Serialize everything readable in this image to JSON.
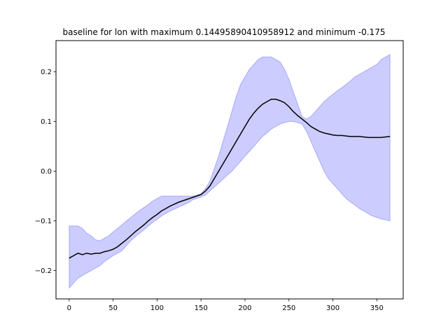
{
  "chart_data": {
    "type": "line",
    "title": "baseline for lon with maximum 0.14495890410958912 and minimum -0.175",
    "xlabel": "",
    "ylabel": "",
    "xlim": [
      -15,
      380
    ],
    "ylim": [
      -0.257,
      0.263
    ],
    "x_ticks": [
      0,
      50,
      100,
      150,
      200,
      250,
      300,
      350
    ],
    "x_tick_labels": [
      "0",
      "50",
      "100",
      "150",
      "200",
      "250",
      "300",
      "350"
    ],
    "y_ticks": [
      -0.2,
      -0.1,
      0.0,
      0.1,
      0.2
    ],
    "y_tick_labels": [
      "−0.2",
      "−0.1",
      "0.0",
      "0.1",
      "0.2"
    ],
    "grid": false,
    "legend": "none",
    "colors": {
      "line": "#000000",
      "band_fill": "#0000ff",
      "band_edge": "#0000ff"
    },
    "series": [
      {
        "x": [
          0,
          5,
          10,
          15,
          20,
          25,
          30,
          35,
          40,
          45,
          50,
          55,
          60,
          65,
          70,
          75,
          80,
          85,
          90,
          95,
          100,
          105,
          110,
          115,
          120,
          125,
          130,
          135,
          140,
          145,
          150,
          155,
          160,
          165,
          170,
          175,
          180,
          185,
          190,
          195,
          200,
          205,
          210,
          215,
          220,
          225,
          230,
          235,
          240,
          245,
          250,
          255,
          260,
          265,
          270,
          275,
          280,
          285,
          290,
          295,
          300,
          305,
          310,
          315,
          320,
          325,
          330,
          335,
          340,
          345,
          350,
          355,
          360,
          365
        ],
        "values": [
          -0.175,
          -0.17,
          -0.165,
          -0.168,
          -0.165,
          -0.167,
          -0.165,
          -0.165,
          -0.162,
          -0.16,
          -0.157,
          -0.152,
          -0.145,
          -0.138,
          -0.13,
          -0.122,
          -0.115,
          -0.108,
          -0.1,
          -0.093,
          -0.087,
          -0.08,
          -0.075,
          -0.07,
          -0.066,
          -0.062,
          -0.059,
          -0.056,
          -0.053,
          -0.05,
          -0.047,
          -0.04,
          -0.03,
          -0.015,
          0.0,
          0.015,
          0.03,
          0.045,
          0.06,
          0.075,
          0.09,
          0.105,
          0.117,
          0.127,
          0.135,
          0.14,
          0.145,
          0.145,
          0.142,
          0.138,
          0.13,
          0.12,
          0.112,
          0.105,
          0.098,
          0.09,
          0.085,
          0.08,
          0.077,
          0.075,
          0.073,
          0.072,
          0.072,
          0.071,
          0.07,
          0.07,
          0.07,
          0.069,
          0.068,
          0.068,
          0.068,
          0.068,
          0.069,
          0.07
        ],
        "lower": [
          -0.235,
          -0.225,
          -0.215,
          -0.21,
          -0.205,
          -0.2,
          -0.195,
          -0.19,
          -0.182,
          -0.176,
          -0.17,
          -0.165,
          -0.16,
          -0.15,
          -0.14,
          -0.132,
          -0.125,
          -0.118,
          -0.11,
          -0.103,
          -0.097,
          -0.09,
          -0.085,
          -0.08,
          -0.076,
          -0.072,
          -0.068,
          -0.064,
          -0.058,
          -0.055,
          -0.052,
          -0.048,
          -0.04,
          -0.032,
          -0.024,
          -0.016,
          -0.008,
          0.0,
          0.01,
          0.02,
          0.03,
          0.04,
          0.05,
          0.06,
          0.07,
          0.077,
          0.085,
          0.09,
          0.095,
          0.098,
          0.1,
          0.1,
          0.098,
          0.095,
          0.08,
          0.06,
          0.04,
          0.02,
          0.0,
          -0.015,
          -0.025,
          -0.035,
          -0.045,
          -0.055,
          -0.062,
          -0.068,
          -0.075,
          -0.08,
          -0.085,
          -0.09,
          -0.093,
          -0.096,
          -0.098,
          -0.1
        ],
        "upper": [
          -0.11,
          -0.11,
          -0.11,
          -0.115,
          -0.125,
          -0.13,
          -0.138,
          -0.14,
          -0.135,
          -0.13,
          -0.122,
          -0.115,
          -0.108,
          -0.1,
          -0.093,
          -0.086,
          -0.079,
          -0.073,
          -0.067,
          -0.06,
          -0.055,
          -0.05,
          -0.05,
          -0.05,
          -0.05,
          -0.05,
          -0.05,
          -0.05,
          -0.05,
          -0.048,
          -0.045,
          -0.035,
          -0.02,
          0.005,
          0.03,
          0.06,
          0.09,
          0.12,
          0.15,
          0.175,
          0.19,
          0.205,
          0.215,
          0.225,
          0.23,
          0.23,
          0.23,
          0.225,
          0.22,
          0.205,
          0.185,
          0.16,
          0.135,
          0.11,
          0.105,
          0.11,
          0.12,
          0.13,
          0.14,
          0.148,
          0.155,
          0.162,
          0.168,
          0.175,
          0.182,
          0.19,
          0.195,
          0.2,
          0.205,
          0.21,
          0.215,
          0.225,
          0.23,
          0.235
        ]
      }
    ]
  }
}
